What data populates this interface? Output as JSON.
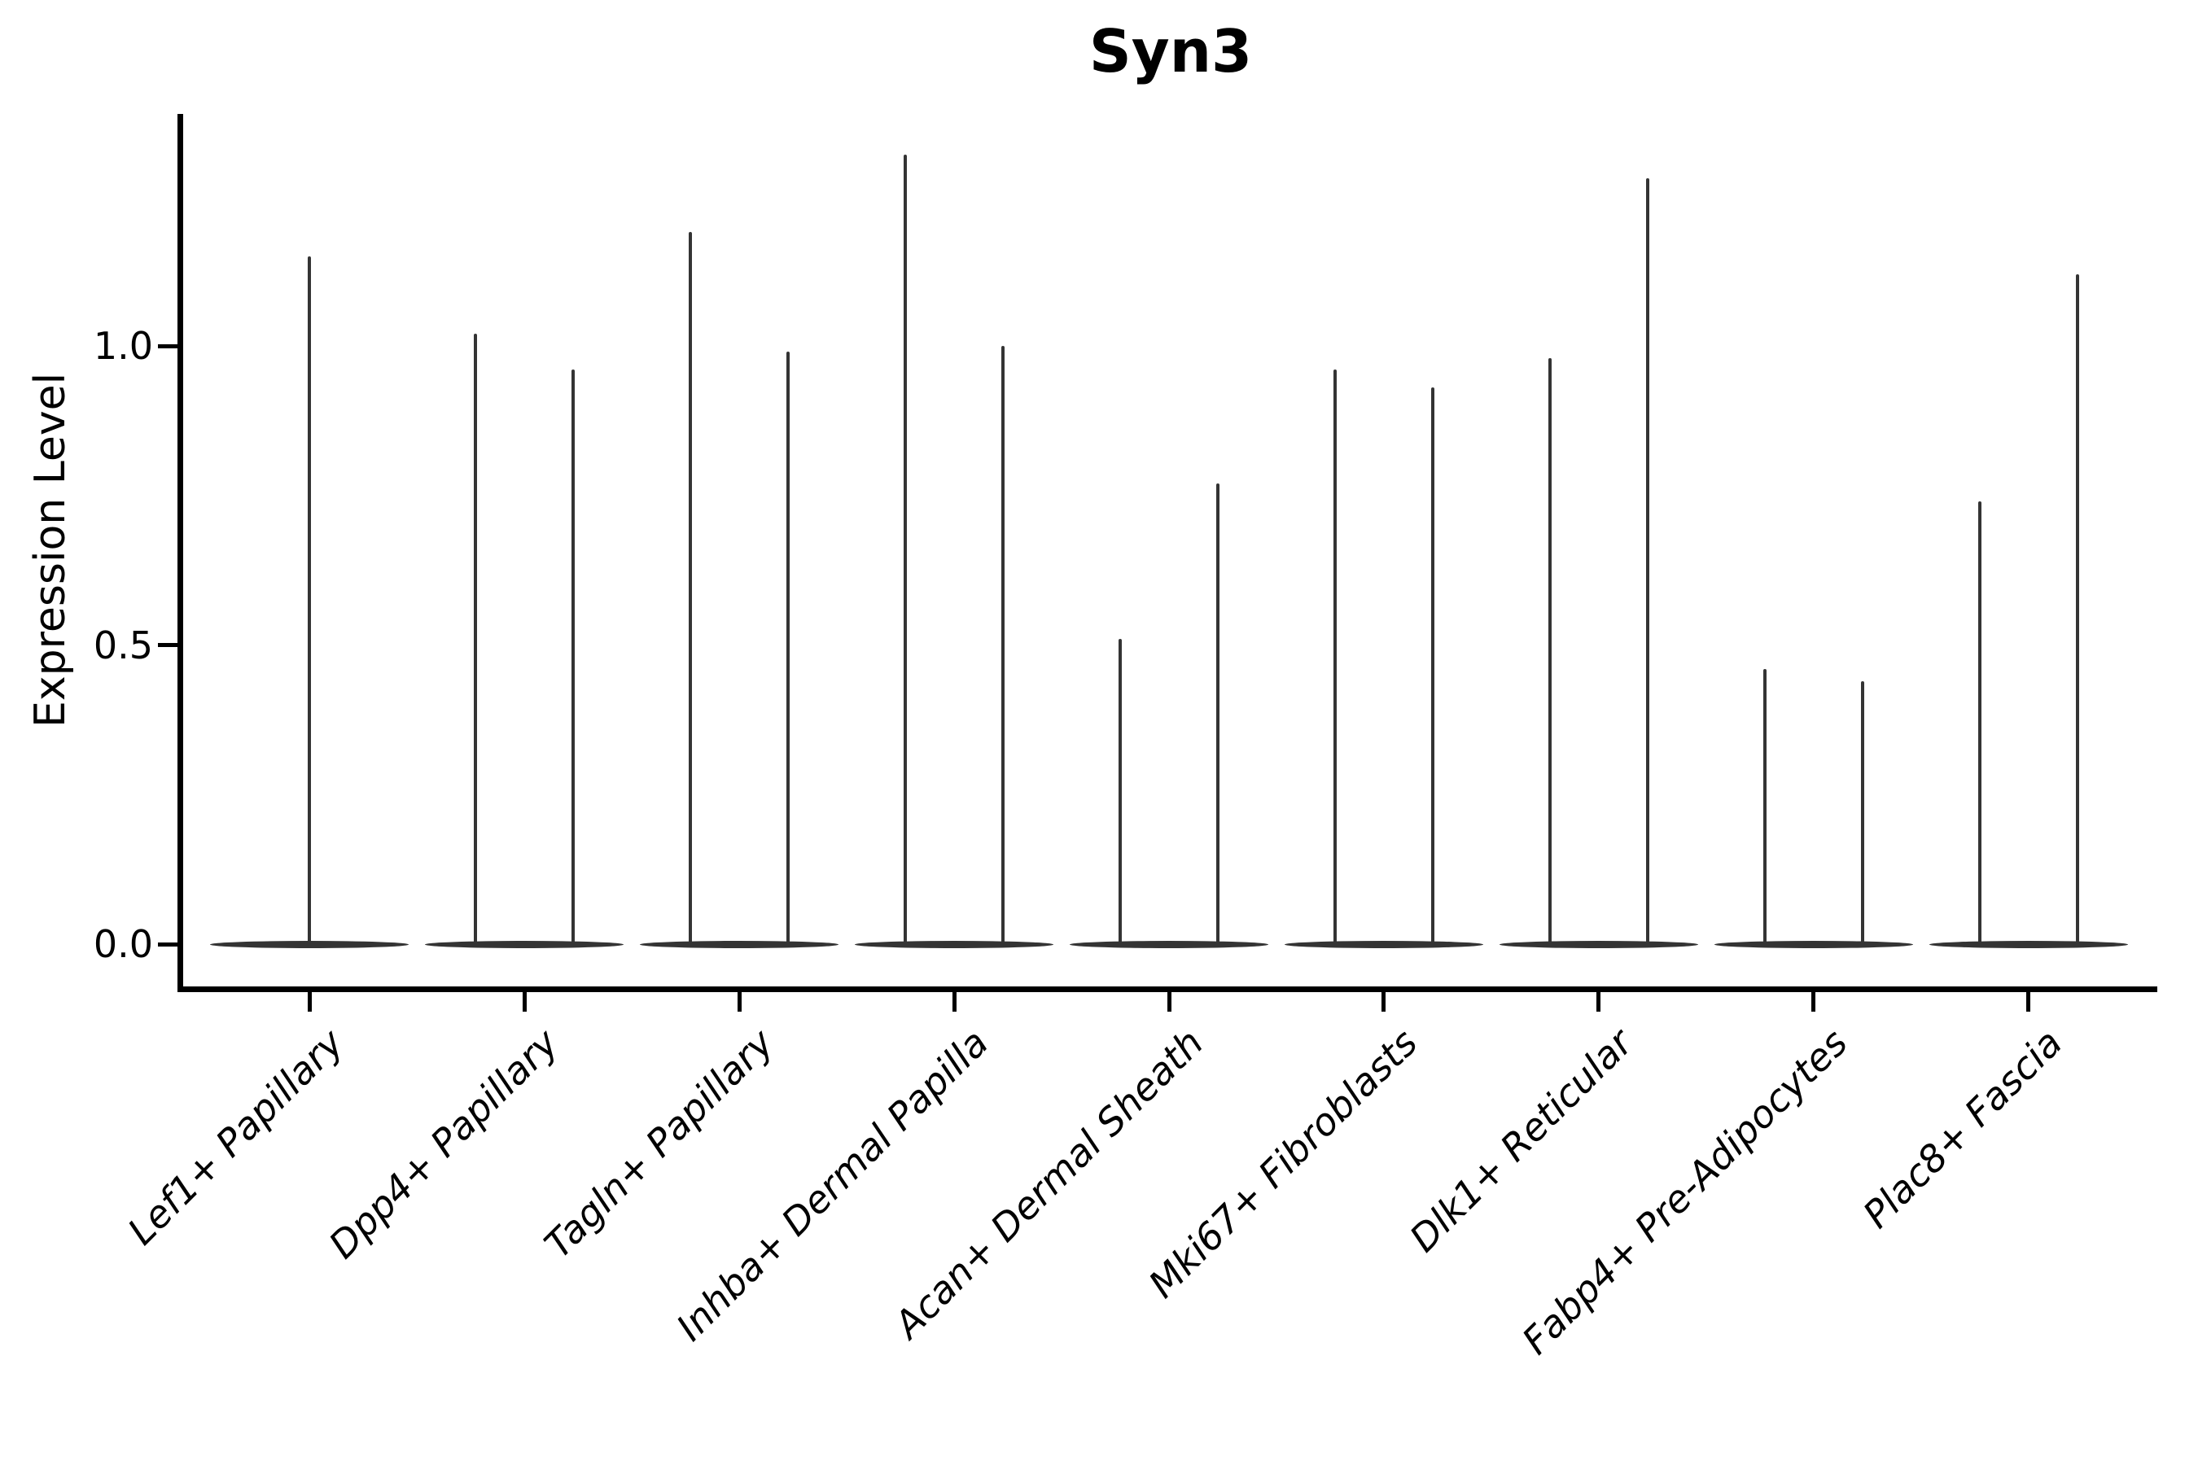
{
  "title": "Syn3",
  "y_axis": {
    "label": "Expression Level",
    "tick_labels": [
      "0.0",
      "0.5",
      "1.0"
    ]
  },
  "x_axis": {
    "categories": [
      "Lef1+ Papillary",
      "Dpp4+ Papillary",
      "Tagln+ Papillary",
      "Inhba+ Dermal Papilla",
      "Acan+ Dermal Sheath",
      "Mki67+ Fibroblasts",
      "Dlk1+ Reticular",
      "Fabp4+ Pre-Adipocytes",
      "Plac8+ Fascia"
    ]
  },
  "chart_data": {
    "type": "violin",
    "title": "Syn3",
    "xlabel": "",
    "ylabel": "Expression Level",
    "ylim": [
      -0.07,
      1.39
    ],
    "yticks": [
      0.0,
      0.5,
      1.0
    ],
    "ytick_labels": [
      "0.0",
      "0.5",
      "1.0"
    ],
    "grid": false,
    "legend": false,
    "style": "flat zero-density violins with thin max-expression spikes; single centered violin for first category, two side-by-side violins for all others",
    "color": "#343434",
    "categories": [
      "Lef1+ Papillary",
      "Dpp4+ Papillary",
      "Tagln+ Papillary",
      "Inhba+ Dermal Papilla",
      "Acan+ Dermal Sheath",
      "Mki67+ Fibroblasts",
      "Dlk1+ Reticular",
      "Fabp4+ Pre-Adipocytes",
      "Plac8+ Fascia"
    ],
    "spike_maxima": [
      [
        1.15
      ],
      [
        1.02,
        0.96
      ],
      [
        1.19,
        0.99
      ],
      [
        1.32,
        1.0
      ],
      [
        0.51,
        0.77
      ],
      [
        0.96,
        0.93
      ],
      [
        0.98,
        1.28
      ],
      [
        0.46,
        0.44
      ],
      [
        0.74,
        1.12
      ]
    ],
    "baseline_value": 0.0
  }
}
